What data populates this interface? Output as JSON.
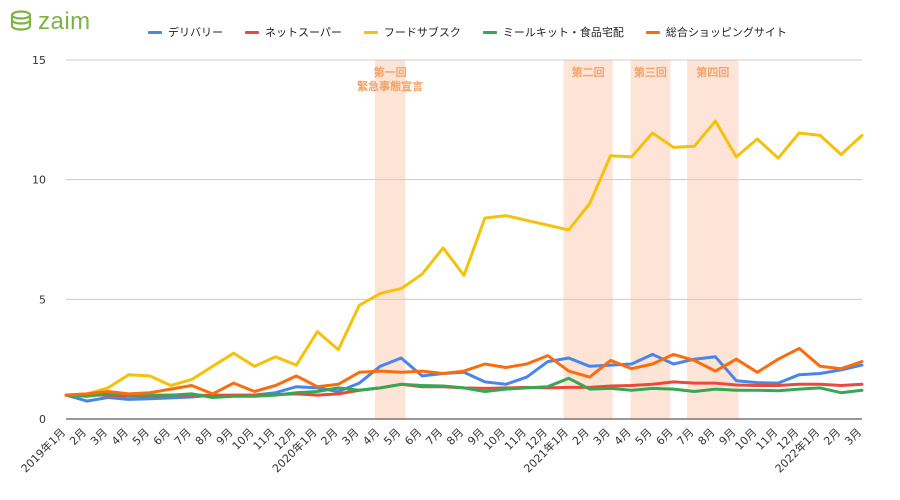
{
  "brand": {
    "name": "zaim",
    "color": "#7cb342",
    "icon": "coin-stack-icon"
  },
  "chart_data": {
    "type": "line",
    "title": "",
    "xlabel": "",
    "ylabel": "",
    "ylim": [
      0,
      15
    ],
    "yticks": [
      0,
      5,
      10,
      15
    ],
    "grid": "horizontal",
    "legend_position": "top",
    "categories": [
      "2019年1月",
      "2月",
      "3月",
      "4月",
      "5月",
      "6月",
      "7月",
      "8月",
      "9月",
      "10月",
      "11月",
      "12月",
      "2020年1月",
      "2月",
      "3月",
      "4月",
      "5月",
      "6月",
      "7月",
      "8月",
      "9月",
      "10月",
      "11月",
      "12月",
      "2021年1月",
      "2月",
      "3月",
      "4月",
      "5月",
      "6月",
      "7月",
      "8月",
      "9月",
      "10月",
      "11月",
      "12月",
      "2022年1月",
      "2月",
      "3月"
    ],
    "series": [
      {
        "name": "デリバリー",
        "color": "#4a86e8",
        "values": [
          1.0,
          0.75,
          0.9,
          0.82,
          0.85,
          0.88,
          0.92,
          1.0,
          0.98,
          1.0,
          1.1,
          1.35,
          1.3,
          1.15,
          1.5,
          2.2,
          2.55,
          1.8,
          1.9,
          1.95,
          1.55,
          1.45,
          1.75,
          2.4,
          2.55,
          2.2,
          2.25,
          2.3,
          2.7,
          2.3,
          2.5,
          2.6,
          1.6,
          1.52,
          1.5,
          1.85,
          1.9,
          2.05,
          2.25
        ]
      },
      {
        "name": "ネットスーパー",
        "color": "#e84a3c",
        "values": [
          1.0,
          1.0,
          1.0,
          0.95,
          0.95,
          1.0,
          1.0,
          0.98,
          1.0,
          1.0,
          1.02,
          1.05,
          1.0,
          1.05,
          1.2,
          1.3,
          1.45,
          1.35,
          1.35,
          1.3,
          1.28,
          1.3,
          1.32,
          1.3,
          1.32,
          1.32,
          1.38,
          1.4,
          1.45,
          1.55,
          1.5,
          1.5,
          1.42,
          1.4,
          1.4,
          1.45,
          1.45,
          1.4,
          1.45
        ]
      },
      {
        "name": "フードサブスク",
        "color": "#f4c20d",
        "values": [
          1.0,
          1.05,
          1.3,
          1.85,
          1.8,
          1.4,
          1.65,
          2.2,
          2.75,
          2.2,
          2.6,
          2.25,
          3.65,
          2.9,
          4.75,
          5.25,
          5.45,
          6.05,
          7.15,
          6.0,
          8.4,
          8.5,
          8.3,
          8.1,
          7.9,
          9.0,
          11.0,
          10.95,
          11.95,
          11.35,
          11.4,
          12.45,
          10.95,
          11.7,
          10.9,
          11.95,
          11.85,
          11.05,
          11.85
        ]
      },
      {
        "name": "ミールキット・食品宅配",
        "color": "#34a853",
        "values": [
          1.0,
          0.95,
          1.05,
          1.0,
          1.0,
          1.0,
          1.05,
          0.9,
          0.95,
          0.95,
          1.0,
          1.1,
          1.15,
          1.3,
          1.2,
          1.3,
          1.45,
          1.4,
          1.38,
          1.3,
          1.15,
          1.25,
          1.3,
          1.35,
          1.7,
          1.25,
          1.28,
          1.2,
          1.28,
          1.25,
          1.15,
          1.25,
          1.2,
          1.2,
          1.18,
          1.25,
          1.3,
          1.1,
          1.2
        ]
      },
      {
        "name": "総合ショッピングサイト",
        "color": "#fa6d0f",
        "values": [
          1.0,
          1.05,
          1.15,
          1.05,
          1.1,
          1.25,
          1.4,
          1.05,
          1.5,
          1.15,
          1.4,
          1.8,
          1.35,
          1.45,
          1.95,
          2.0,
          1.95,
          2.0,
          1.9,
          2.0,
          2.3,
          2.15,
          2.3,
          2.65,
          2.0,
          1.75,
          2.45,
          2.1,
          2.3,
          2.7,
          2.45,
          2.0,
          2.5,
          1.95,
          2.5,
          2.95,
          2.2,
          2.1,
          2.4
        ]
      }
    ],
    "annotations": [
      {
        "label": "第一回\n緊急事態宣言",
        "start_index": 14.75,
        "end_index": 16.2,
        "fill": "#fde4d6",
        "text_color": "#f3a46b"
      },
      {
        "label": "第二回",
        "start_index": 23.75,
        "end_index": 26.1,
        "fill": "#fde4d6",
        "text_color": "#f3a46b"
      },
      {
        "label": "第三回",
        "start_index": 26.95,
        "end_index": 28.85,
        "fill": "#fde4d6",
        "text_color": "#f3a46b"
      },
      {
        "label": "第四回",
        "start_index": 29.65,
        "end_index": 32.1,
        "fill": "#fde4d6",
        "text_color": "#f3a46b"
      }
    ]
  }
}
